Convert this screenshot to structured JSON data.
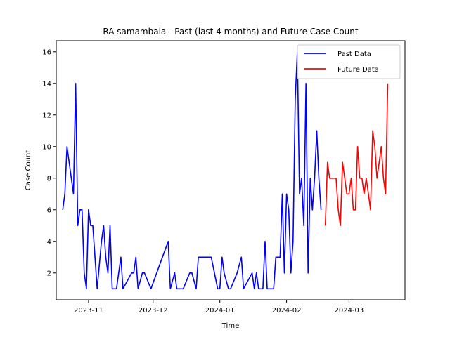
{
  "chart_data": {
    "type": "line",
    "title": "RA samambaia - Past (last 4 months) and Future Case Count",
    "xlabel": "Time",
    "ylabel": "Case Count",
    "ylim": [
      0.3,
      16.7
    ],
    "xlim": [
      "2023-10-17",
      "2024-03-27"
    ],
    "x_ticks": [
      "2023-11-01",
      "2023-12-01",
      "2024-01-01",
      "2024-02-01",
      "2024-03-01"
    ],
    "x_tick_labels": [
      "2023-11",
      "2023-12",
      "2024-01",
      "2024-02",
      "2024-03"
    ],
    "y_ticks": [
      2,
      4,
      6,
      8,
      10,
      12,
      14,
      16
    ],
    "legend": "top-right",
    "grid": false,
    "series": [
      {
        "name": "Past Data",
        "color": "#0000ff",
        "points": [
          [
            "2023-10-20",
            6
          ],
          [
            "2023-10-21",
            7
          ],
          [
            "2023-10-22",
            10
          ],
          [
            "2023-10-25",
            7
          ],
          [
            "2023-10-26",
            14
          ],
          [
            "2023-10-27",
            5
          ],
          [
            "2023-10-28",
            6
          ],
          [
            "2023-10-29",
            6
          ],
          [
            "2023-10-30",
            2
          ],
          [
            "2023-10-31",
            1
          ],
          [
            "2023-11-01",
            6
          ],
          [
            "2023-11-02",
            5
          ],
          [
            "2023-11-03",
            5
          ],
          [
            "2023-11-05",
            1
          ],
          [
            "2023-11-07",
            4
          ],
          [
            "2023-11-08",
            5
          ],
          [
            "2023-11-09",
            3
          ],
          [
            "2023-11-10",
            2
          ],
          [
            "2023-11-11",
            5
          ],
          [
            "2023-11-12",
            1
          ],
          [
            "2023-11-14",
            1
          ],
          [
            "2023-11-16",
            3
          ],
          [
            "2023-11-17",
            1
          ],
          [
            "2023-11-21",
            2
          ],
          [
            "2023-11-22",
            2
          ],
          [
            "2023-11-23",
            3
          ],
          [
            "2023-11-24",
            1
          ],
          [
            "2023-11-26",
            2
          ],
          [
            "2023-11-27",
            2
          ],
          [
            "2023-11-30",
            1
          ],
          [
            "2023-12-08",
            4
          ],
          [
            "2023-12-09",
            1
          ],
          [
            "2023-12-11",
            2
          ],
          [
            "2023-12-12",
            1
          ],
          [
            "2023-12-15",
            1
          ],
          [
            "2023-12-18",
            2
          ],
          [
            "2023-12-19",
            2
          ],
          [
            "2023-12-21",
            1
          ],
          [
            "2023-12-22",
            3
          ],
          [
            "2023-12-28",
            3
          ],
          [
            "2023-12-31",
            1
          ],
          [
            "2024-01-01",
            1
          ],
          [
            "2024-01-02",
            3
          ],
          [
            "2024-01-03",
            2
          ],
          [
            "2024-01-05",
            1
          ],
          [
            "2024-01-06",
            1
          ],
          [
            "2024-01-09",
            2
          ],
          [
            "2024-01-11",
            3
          ],
          [
            "2024-01-12",
            1
          ],
          [
            "2024-01-16",
            2
          ],
          [
            "2024-01-17",
            1
          ],
          [
            "2024-01-18",
            2
          ],
          [
            "2024-01-19",
            1
          ],
          [
            "2024-01-21",
            1
          ],
          [
            "2024-01-22",
            4
          ],
          [
            "2024-01-23",
            1
          ],
          [
            "2024-01-26",
            1
          ],
          [
            "2024-01-27",
            3
          ],
          [
            "2024-01-29",
            3
          ],
          [
            "2024-01-30",
            7
          ],
          [
            "2024-01-31",
            2
          ],
          [
            "2024-02-01",
            7
          ],
          [
            "2024-02-02",
            6
          ],
          [
            "2024-02-03",
            2
          ],
          [
            "2024-02-04",
            4
          ],
          [
            "2024-02-05",
            13
          ],
          [
            "2024-02-06",
            16
          ],
          [
            "2024-02-07",
            7
          ],
          [
            "2024-02-08",
            8
          ],
          [
            "2024-02-09",
            5
          ],
          [
            "2024-02-10",
            14
          ],
          [
            "2024-02-11",
            2
          ],
          [
            "2024-02-12",
            8
          ],
          [
            "2024-02-13",
            6
          ],
          [
            "2024-02-14",
            8
          ],
          [
            "2024-02-15",
            11
          ],
          [
            "2024-02-16",
            8
          ],
          [
            "2024-02-17",
            6
          ]
        ]
      },
      {
        "name": "Future Data",
        "color": "#ff0000",
        "points": [
          [
            "2024-02-19",
            5
          ],
          [
            "2024-02-20",
            9
          ],
          [
            "2024-02-21",
            8
          ],
          [
            "2024-02-22",
            8
          ],
          [
            "2024-02-23",
            8
          ],
          [
            "2024-02-24",
            8
          ],
          [
            "2024-02-25",
            6
          ],
          [
            "2024-02-26",
            5
          ],
          [
            "2024-02-27",
            9
          ],
          [
            "2024-02-28",
            8
          ],
          [
            "2024-02-29",
            7
          ],
          [
            "2024-03-01",
            7
          ],
          [
            "2024-03-02",
            8
          ],
          [
            "2024-03-03",
            6
          ],
          [
            "2024-03-04",
            6
          ],
          [
            "2024-03-05",
            10
          ],
          [
            "2024-03-06",
            8
          ],
          [
            "2024-03-07",
            8
          ],
          [
            "2024-03-08",
            7
          ],
          [
            "2024-03-09",
            8
          ],
          [
            "2024-03-10",
            7
          ],
          [
            "2024-03-11",
            6
          ],
          [
            "2024-03-12",
            11
          ],
          [
            "2024-03-13",
            10
          ],
          [
            "2024-03-14",
            8
          ],
          [
            "2024-03-15",
            9
          ],
          [
            "2024-03-16",
            10
          ],
          [
            "2024-03-17",
            8
          ],
          [
            "2024-03-18",
            7
          ],
          [
            "2024-03-19",
            14
          ]
        ]
      }
    ]
  }
}
